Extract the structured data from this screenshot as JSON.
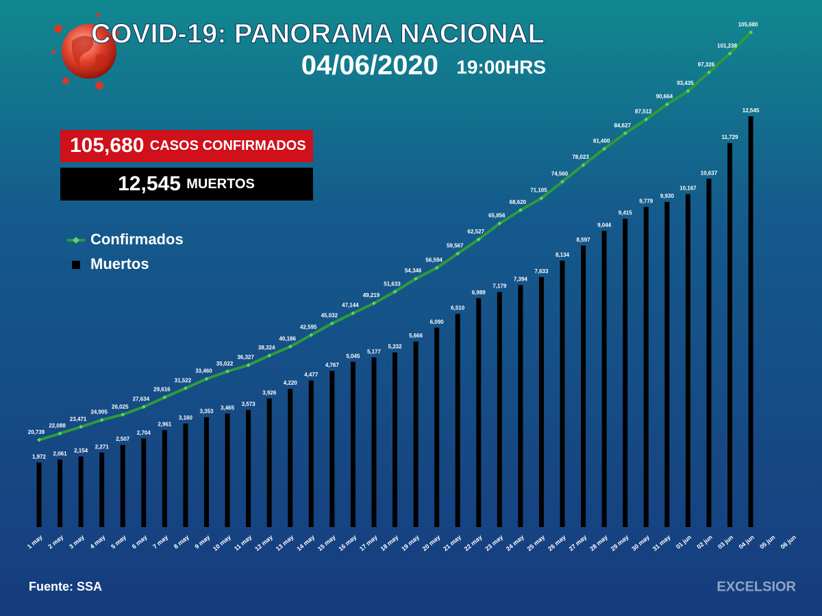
{
  "chart_data": {
    "type": "line-bar",
    "title": "COVID-19: PANORAMA NACIONAL",
    "date": "04/06/2020",
    "time": "19:00HRS",
    "summary": [
      {
        "value": "105,680",
        "label": "CASOS CONFIRMADOS"
      },
      {
        "value": "12,545",
        "label": "MUERTOS"
      }
    ],
    "source": "Fuente: SSA",
    "brand": "EXCELSIOR",
    "categories": [
      "1 may",
      "2 may",
      "3 may",
      "4 may",
      "5 may",
      "6 may",
      "7 may",
      "8 may",
      "9 may",
      "10 may",
      "11 may",
      "12 may",
      "13 may",
      "14 may",
      "15 may",
      "16 may",
      "17 may",
      "18 may",
      "19 may",
      "20 may",
      "21 may",
      "22 may",
      "23 may",
      "24 may",
      "25 may",
      "26 may",
      "27 may",
      "28 may",
      "29 may",
      "30 may",
      "31 may",
      "01 jun",
      "02 jun",
      "03 jun",
      "04 jun",
      "05 jun",
      "06 jun"
    ],
    "highlight_category": 34,
    "series": [
      {
        "name": "Confirmados",
        "type": "line",
        "color": "#2e9b3c",
        "marker_color": "#5fd36b",
        "axis": "y",
        "values": [
          20739,
          22088,
          23471,
          24905,
          26025,
          27634,
          29616,
          31522,
          33460,
          35022,
          36327,
          38324,
          40186,
          42595,
          45032,
          47144,
          49219,
          51633,
          54346,
          56594,
          59567,
          62527,
          65856,
          68620,
          71105,
          74560,
          78023,
          81400,
          84627,
          87512,
          90664,
          93435,
          97326,
          101238,
          105680,
          null,
          null
        ],
        "value_labels": [
          "20,739",
          "22,088",
          "23,471",
          "24,905",
          "26,025",
          "27,634",
          "29,616",
          "31,522",
          "33,460",
          "35,022",
          "36,327",
          "38,324",
          "40,186",
          "42,595",
          "45,032",
          "47,144",
          "49,219",
          "51,633",
          "54,346",
          "56,594",
          "59,567",
          "62,527",
          "65,856",
          "68,620",
          "71,105",
          "74,560",
          "78,023",
          "81,400",
          "84,627",
          "87,512",
          "90,664",
          "93,435",
          "97,326",
          "101,238",
          "105,680",
          null,
          null
        ]
      },
      {
        "name": "Muertos",
        "type": "bar",
        "color": "#000000",
        "axis": "y2",
        "values": [
          1972,
          2061,
          2154,
          2271,
          2507,
          2704,
          2961,
          3160,
          3353,
          3465,
          3573,
          3926,
          4220,
          4477,
          4767,
          5045,
          5177,
          5332,
          5666,
          6090,
          6510,
          6989,
          7179,
          7394,
          7633,
          8134,
          8597,
          9044,
          9415,
          9779,
          9930,
          10167,
          10637,
          11729,
          12545,
          null,
          null
        ],
        "value_labels": [
          "1,972",
          "2,061",
          "2,154",
          "2,271",
          "2,507",
          "2,704",
          "2,961",
          "3,160",
          "3,353",
          "3,465",
          "3,573",
          "3,926",
          "4,220",
          "4,477",
          "4,767",
          "5,045",
          "5,177",
          "5,332",
          "5,666",
          "6,090",
          "6,510",
          "6,989",
          "7,179",
          "7,394",
          "7,633",
          "8,134",
          "8,597",
          "9,044",
          "9,415",
          "9,779",
          "9,930",
          "10,167",
          "10,637",
          "11,729",
          "12,545",
          null,
          null
        ]
      }
    ],
    "ylim": [
      2600,
      106700
    ],
    "y2lim": [
      0,
      15260
    ],
    "grid": false,
    "legend": "left"
  }
}
